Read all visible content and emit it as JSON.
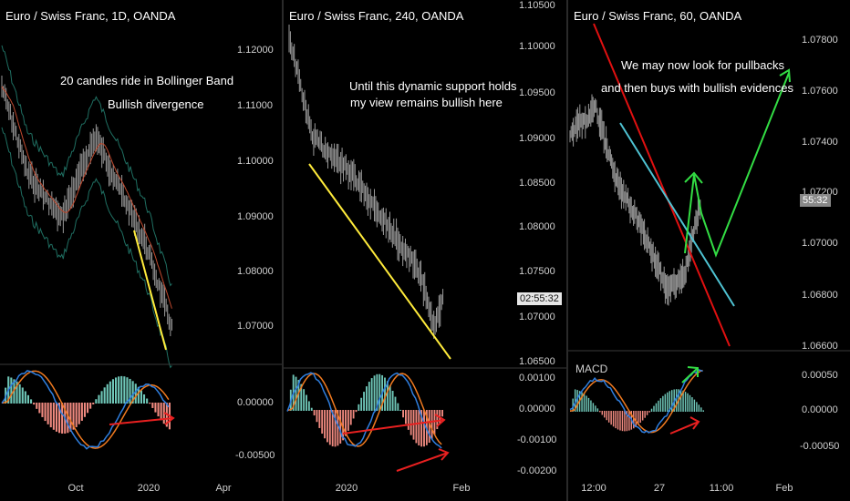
{
  "panels": [
    {
      "title": "Euro / Swiss Franc, 1D, OANDA",
      "notes": [
        "20 candles ride in Bollinger Band",
        "Bullish divergence"
      ],
      "price_ticks": [
        "1.12000",
        "1.11000",
        "1.10000",
        "1.09000",
        "1.08000",
        "1.07000"
      ],
      "osc_ticks": [
        "0.00000",
        "-0.00500"
      ],
      "x_ticks": [
        "Oct",
        "2020",
        "Apr"
      ]
    },
    {
      "title": "Euro / Swiss Franc, 240, OANDA",
      "notes": [
        "Until this dynamic support holds",
        "my view remains bullish here"
      ],
      "price_ticks": [
        "1.10500",
        "1.10000",
        "1.09500",
        "1.09000",
        "1.08500",
        "1.08000",
        "1.07500",
        "1.07000",
        "1.06500"
      ],
      "price_badge": "02:55:32",
      "osc_ticks": [
        "0.00100",
        "0.00000",
        "-0.00100",
        "-0.00200"
      ],
      "x_ticks": [
        "2020",
        "Feb"
      ]
    },
    {
      "title": "Euro / Swiss Franc, 60, OANDA",
      "notes": [
        "We may now look for pullbacks",
        "and then buys with bullish evidences"
      ],
      "price_ticks": [
        "1.07800",
        "1.07600",
        "1.07400",
        "1.07200",
        "1.07000",
        "1.06800",
        "1.06600"
      ],
      "price_badge": "55:32",
      "indicator_label": "MACD",
      "osc_ticks": [
        "0.00050",
        "0.00000",
        "-0.00050"
      ],
      "x_ticks": [
        "12:00",
        "27",
        "11:00",
        "Feb"
      ]
    }
  ],
  "colors": {
    "price": "#9a9a9a",
    "bollinger": "#1f6f62",
    "ma": "#c0492e",
    "trend_yellow": "#ffeb3b",
    "trend_red": "#e01010",
    "trend_cyan": "#4fc3d3",
    "arrow_green": "#33dd44",
    "arrow_red": "#e82020",
    "macd_line": "#2f7fe0",
    "signal_line": "#f07a20",
    "hist_pos": "#6fc7b8",
    "hist_neg": "#f08a80"
  },
  "icons": [
    "pencil-arrow-icon"
  ]
}
